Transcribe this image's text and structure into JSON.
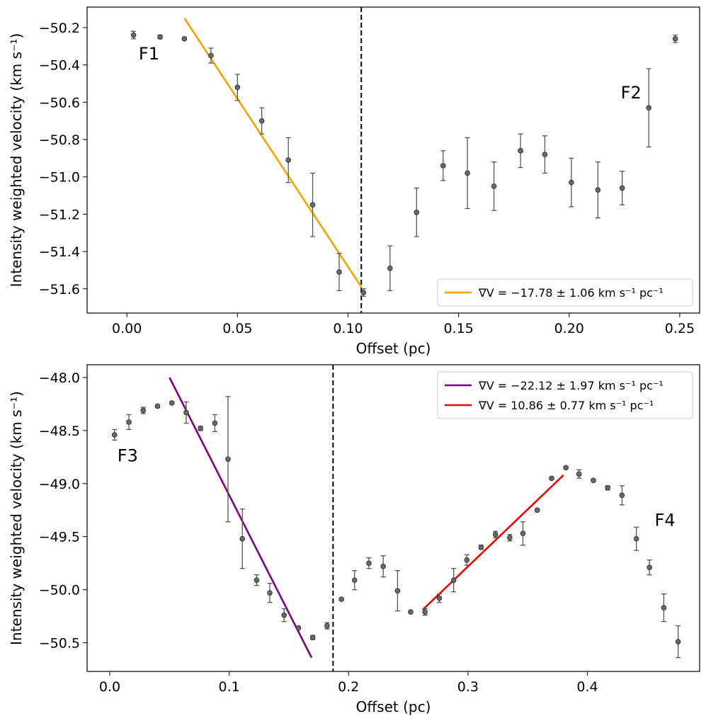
{
  "chart_data": [
    {
      "type": "scatter",
      "xlabel": "Offset (pc)",
      "ylabel": "Intensity weighted velocity (km s⁻¹)",
      "xlim": [
        -0.018,
        0.259
      ],
      "ylim": [
        -51.73,
        -50.09
      ],
      "xticks": [
        0.0,
        0.05,
        0.1,
        0.15,
        0.2,
        0.25
      ],
      "xtick_labels": [
        "0.00",
        "0.05",
        "0.10",
        "0.15",
        "0.20",
        "0.25"
      ],
      "yticks": [
        -51.6,
        -51.4,
        -51.2,
        -51.0,
        -50.8,
        -50.6,
        -50.4,
        -50.2
      ],
      "ytick_labels": [
        "−51.6",
        "−51.4",
        "−51.2",
        "−51.0",
        "−50.8",
        "−50.6",
        "−50.4",
        "−50.2"
      ],
      "grid": false,
      "legend_position": "lower-right",
      "points": {
        "color": "#555555",
        "x": [
          0.003,
          0.015,
          0.026,
          0.038,
          0.05,
          0.061,
          0.073,
          0.084,
          0.096,
          0.107,
          0.119,
          0.131,
          0.143,
          0.154,
          0.166,
          0.178,
          0.189,
          0.201,
          0.213,
          0.224,
          0.236,
          0.248
        ],
        "y": [
          -50.24,
          -50.25,
          -50.26,
          -50.35,
          -50.52,
          -50.7,
          -50.91,
          -51.15,
          -51.51,
          -51.62,
          -51.49,
          -51.19,
          -50.94,
          -50.98,
          -51.05,
          -50.86,
          -50.88,
          -51.03,
          -51.07,
          -51.06,
          -50.63,
          -50.26
        ],
        "yerr": [
          0.02,
          0.01,
          0.005,
          0.04,
          0.07,
          0.07,
          0.12,
          0.17,
          0.1,
          0.02,
          0.12,
          0.13,
          0.08,
          0.19,
          0.13,
          0.09,
          0.1,
          0.13,
          0.15,
          0.09,
          0.21,
          0.02
        ]
      },
      "fits": [
        {
          "name": "∇V = −17.78 ± 1.06 km s⁻¹ pc⁻¹",
          "color": "#f5a300",
          "x": [
            0.026,
            0.106
          ],
          "y": [
            -50.15,
            -51.59
          ]
        }
      ],
      "vline": {
        "x": 0.106,
        "style": "dashed",
        "color": "#000000"
      },
      "annotations": [
        {
          "text": "F1",
          "x": 0.01,
          "y": -50.37
        },
        {
          "text": "F2",
          "x": 0.228,
          "y": -50.58
        }
      ]
    },
    {
      "type": "scatter",
      "xlabel": "Offset (pc)",
      "ylabel": "Intensity weighted velocity (km s⁻¹)",
      "xlim": [
        -0.019,
        0.494
      ],
      "ylim": [
        -50.77,
        -47.88
      ],
      "xticks": [
        0.0,
        0.1,
        0.2,
        0.3,
        0.4
      ],
      "xtick_labels": [
        "0.0",
        "0.1",
        "0.2",
        "0.3",
        "0.4"
      ],
      "yticks": [
        -50.5,
        -50.0,
        -49.5,
        -49.0,
        -48.5,
        -48.0
      ],
      "ytick_labels": [
        "−50.5",
        "−50.0",
        "−49.5",
        "−49.0",
        "−48.5",
        "−48.0"
      ],
      "grid": false,
      "legend_position": "upper-right",
      "points": {
        "color": "#555555",
        "x": [
          0.004,
          0.016,
          0.028,
          0.04,
          0.052,
          0.064,
          0.076,
          0.088,
          0.099,
          0.111,
          0.123,
          0.134,
          0.146,
          0.158,
          0.17,
          0.182,
          0.194,
          0.205,
          0.217,
          0.229,
          0.241,
          0.252,
          0.264,
          0.276,
          0.288,
          0.299,
          0.311,
          0.323,
          0.335,
          0.346,
          0.358,
          0.37,
          0.382,
          0.393,
          0.405,
          0.417,
          0.429,
          0.441,
          0.452,
          0.464,
          0.476
        ],
        "y": [
          -48.54,
          -48.42,
          -48.31,
          -48.27,
          -48.24,
          -48.33,
          -48.48,
          -48.43,
          -48.77,
          -49.52,
          -49.91,
          -50.03,
          -50.24,
          -50.36,
          -50.45,
          -50.34,
          -50.09,
          -49.91,
          -49.75,
          -49.78,
          -50.01,
          -50.21,
          -50.21,
          -50.08,
          -49.91,
          -49.72,
          -49.6,
          -49.48,
          -49.51,
          -49.47,
          -49.25,
          -48.95,
          -48.85,
          -48.91,
          -48.97,
          -49.04,
          -49.11,
          -49.52,
          -49.79,
          -50.17,
          -50.49
        ],
        "yerr": [
          0.05,
          0.07,
          0.03,
          0.01,
          0.01,
          0.1,
          0.02,
          0.08,
          0.59,
          0.28,
          0.05,
          0.09,
          0.06,
          0.01,
          0.02,
          0.03,
          0.01,
          0.09,
          0.05,
          0.1,
          0.19,
          0.01,
          0.03,
          0.04,
          0.11,
          0.05,
          0.02,
          0.03,
          0.03,
          0.11,
          0.01,
          0.01,
          0.01,
          0.04,
          0.01,
          0.02,
          0.09,
          0.11,
          0.07,
          0.13,
          0.15
        ]
      },
      "fits": [
        {
          "name": "∇V = −22.12 ± 1.97 km s⁻¹ pc⁻¹",
          "color": "#800080",
          "x": [
            0.05,
            0.169
          ],
          "y": [
            -48.0,
            -50.64
          ]
        },
        {
          "name": "∇V = 10.86 ± 0.77 km s⁻¹ pc⁻¹",
          "color": "#ee0000",
          "x": [
            0.262,
            0.38
          ],
          "y": [
            -50.19,
            -48.92
          ]
        }
      ],
      "vline": {
        "x": 0.187,
        "style": "dashed",
        "color": "#000000"
      },
      "annotations": [
        {
          "text": "F3",
          "x": 0.015,
          "y": -48.79
        },
        {
          "text": "F4",
          "x": 0.465,
          "y": -49.4
        }
      ]
    }
  ]
}
